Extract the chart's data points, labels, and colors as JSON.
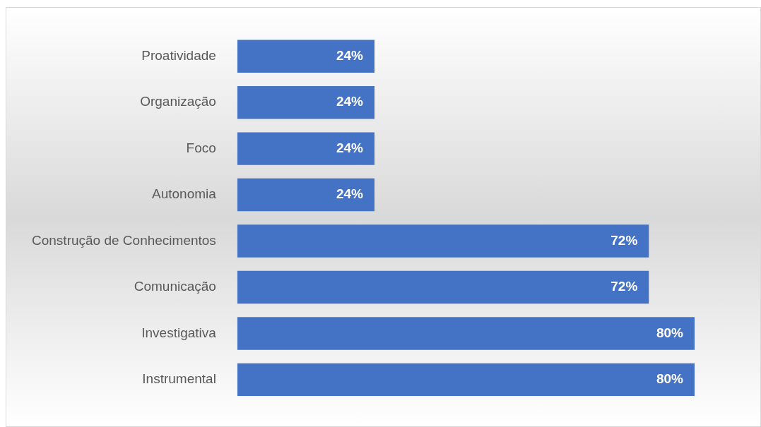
{
  "chart_data": {
    "type": "bar",
    "orientation": "horizontal",
    "categories": [
      "Proatividade",
      "Organização",
      "Foco",
      "Autonomia",
      "Construção de Conhecimentos",
      "Comunicação",
      "Investigativa",
      "Instrumental"
    ],
    "values": [
      24,
      24,
      24,
      24,
      72,
      72,
      80,
      80
    ],
    "value_labels": [
      "24%",
      "24%",
      "24%",
      "24%",
      "72%",
      "72%",
      "80%",
      "80%"
    ],
    "color": "#4472c4"
  }
}
